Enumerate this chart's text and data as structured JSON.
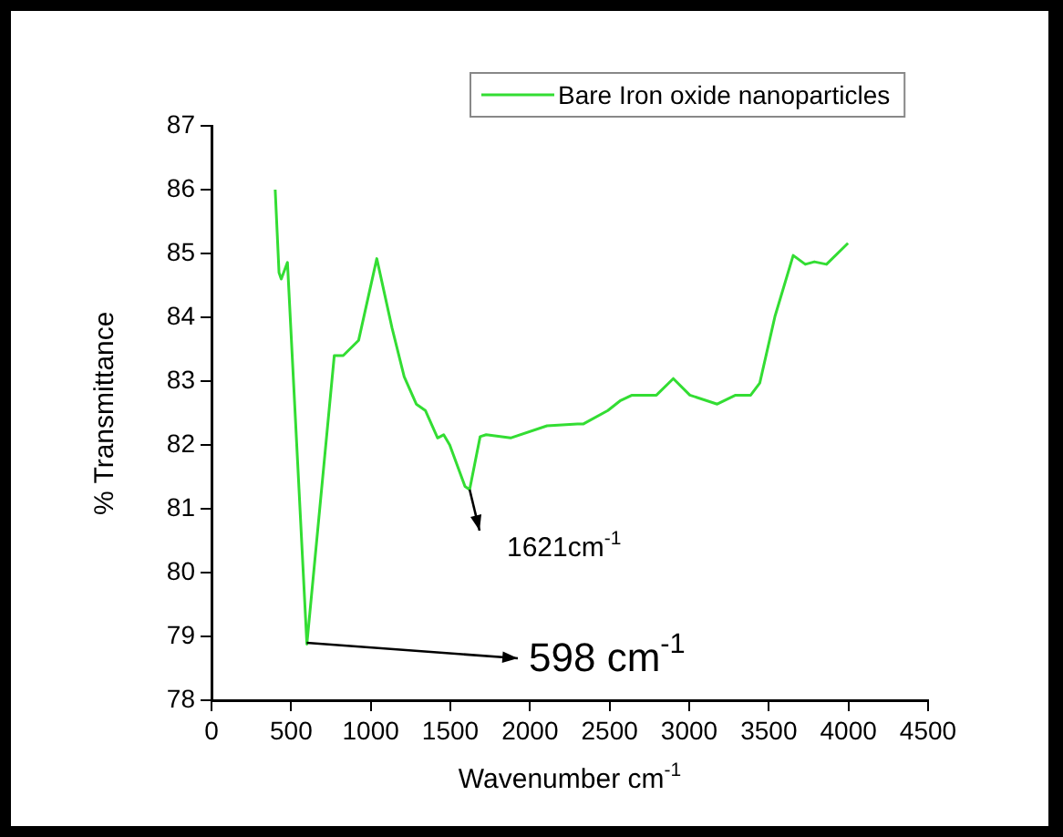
{
  "chart_data": {
    "type": "line",
    "xlabel": "Wavenumber cm$^{-1}$",
    "ylabel": "% Transmittance",
    "x": [
      400,
      424,
      438,
      477,
      599,
      771,
      827,
      924,
      1038,
      1134,
      1210,
      1286,
      1343,
      1420,
      1458,
      1496,
      1592,
      1621,
      1687,
      1725,
      1878,
      2107,
      2298,
      2336,
      2489,
      2565,
      2641,
      2794,
      2900,
      3004,
      3176,
      3291,
      3386,
      3443,
      3538,
      3653,
      3729,
      3786,
      3862,
      3997
    ],
    "series": [
      {
        "name": "Bare Iron oxide nanoparticles",
        "color": "#33dd33",
        "values": [
          86.0,
          84.7,
          84.6,
          84.86,
          78.88,
          83.4,
          83.4,
          83.64,
          84.92,
          83.83,
          83.07,
          82.64,
          82.54,
          82.11,
          82.16,
          82.0,
          81.35,
          81.3,
          82.13,
          82.16,
          82.11,
          82.3,
          82.33,
          82.33,
          82.54,
          82.69,
          82.78,
          82.78,
          83.04,
          82.78,
          82.64,
          82.78,
          82.78,
          82.97,
          84.01,
          84.97,
          84.83,
          84.87,
          84.83,
          85.16
        ]
      }
    ],
    "xlim": [
      0,
      4500
    ],
    "xticks": [
      0,
      500,
      1000,
      1500,
      2000,
      2500,
      3000,
      3500,
      4000,
      4500
    ],
    "ylim": [
      78,
      87
    ],
    "yticks": [
      78,
      79,
      80,
      81,
      82,
      83,
      84,
      85,
      86,
      87
    ],
    "annotations": [
      {
        "text": "598 cm$^{-1}$",
        "x": 598,
        "y": 78.9
      },
      {
        "text": "1621cm$^{-1}$",
        "x": 1621,
        "y": 81.3
      }
    ],
    "grid": false,
    "legend": "top right",
    "marker": "none",
    "line_style": "solid"
  }
}
